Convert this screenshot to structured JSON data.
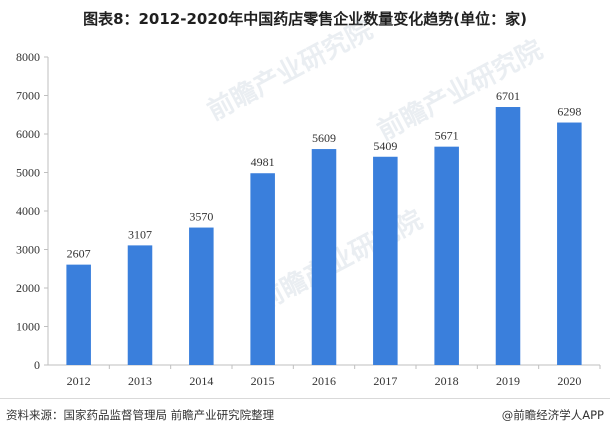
{
  "title": "图表8：2012-2020年中国药店零售企业数量变化趋势(单位：家)",
  "footer": {
    "source": "资料来源：国家药品监督管理局 前瞻产业研究院整理",
    "credit": "@前瞻经济学人APP"
  },
  "watermark": "前瞻产业研究院",
  "colors": {
    "bar": "#3a7fdc",
    "axis": "#bfbfbf",
    "text": "#333333"
  },
  "chart_data": {
    "type": "bar",
    "categories": [
      "2012",
      "2013",
      "2014",
      "2015",
      "2016",
      "2017",
      "2018",
      "2019",
      "2020"
    ],
    "values": [
      2607,
      3107,
      3570,
      4981,
      5609,
      5409,
      5671,
      6701,
      6298
    ],
    "ylim": [
      0,
      8000
    ],
    "yticks": [
      0,
      1000,
      2000,
      3000,
      4000,
      5000,
      6000,
      7000,
      8000
    ],
    "grid": false,
    "data_labels": true
  }
}
